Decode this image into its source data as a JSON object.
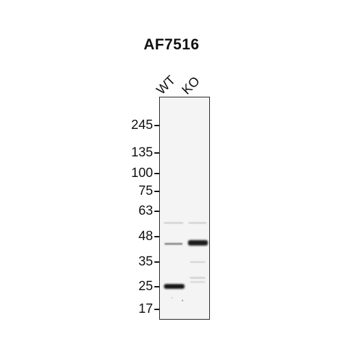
{
  "title": "AF7516",
  "lanes": [
    "WT",
    "KO"
  ],
  "markers": [
    "245",
    "135",
    "100",
    "75",
    "63",
    "48",
    "35",
    "25",
    "17"
  ]
}
